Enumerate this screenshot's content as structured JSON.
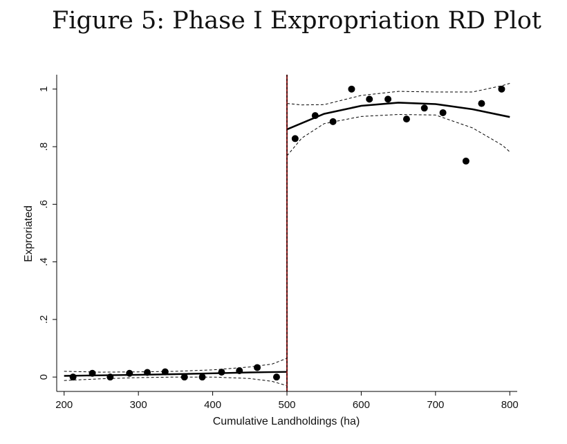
{
  "figure": {
    "title": "Figure 5: Phase I Expropriation RD Plot"
  },
  "chart_data": {
    "type": "scatter",
    "xlabel": "Cumulative Landholdings (ha)",
    "ylabel": "Exproriated",
    "xlim": [
      190,
      810
    ],
    "ylim": [
      -0.05,
      1.05
    ],
    "x_ticks": [
      200,
      300,
      400,
      500,
      600,
      700,
      800
    ],
    "x_tick_labels": [
      "200",
      "300",
      "400",
      "500",
      "600",
      "700",
      "800"
    ],
    "y_ticks": [
      0,
      0.2,
      0.4,
      0.6,
      0.8,
      1
    ],
    "y_tick_labels": [
      "0",
      ".2",
      ".4",
      ".6",
      ".8",
      "1"
    ],
    "cutoff": 500,
    "grid": false,
    "points": [
      {
        "x": 212,
        "y": 0.0
      },
      {
        "x": 238,
        "y": 0.013
      },
      {
        "x": 262,
        "y": 0.0
      },
      {
        "x": 288,
        "y": 0.013
      },
      {
        "x": 312,
        "y": 0.016
      },
      {
        "x": 336,
        "y": 0.018
      },
      {
        "x": 362,
        "y": 0.0
      },
      {
        "x": 386,
        "y": 0.0
      },
      {
        "x": 412,
        "y": 0.017
      },
      {
        "x": 436,
        "y": 0.022
      },
      {
        "x": 460,
        "y": 0.033
      },
      {
        "x": 486,
        "y": 0.0
      },
      {
        "x": 511,
        "y": 0.828
      },
      {
        "x": 538,
        "y": 0.908
      },
      {
        "x": 562,
        "y": 0.887
      },
      {
        "x": 587,
        "y": 1.0
      },
      {
        "x": 611,
        "y": 0.965
      },
      {
        "x": 636,
        "y": 0.965
      },
      {
        "x": 661,
        "y": 0.896
      },
      {
        "x": 685,
        "y": 0.934
      },
      {
        "x": 710,
        "y": 0.918
      },
      {
        "x": 741,
        "y": 0.75
      },
      {
        "x": 762,
        "y": 0.95
      },
      {
        "x": 789,
        "y": 1.0
      }
    ],
    "fit_left": {
      "x": [
        200,
        250,
        300,
        350,
        400,
        450,
        500
      ],
      "y": [
        0.004,
        0.006,
        0.008,
        0.01,
        0.013,
        0.016,
        0.018
      ]
    },
    "fit_right": {
      "x": [
        500,
        550,
        600,
        650,
        700,
        750,
        800
      ],
      "y": [
        0.86,
        0.914,
        0.942,
        0.953,
        0.948,
        0.93,
        0.903
      ]
    },
    "ci_left_upper": {
      "x": [
        200,
        250,
        300,
        350,
        400,
        450,
        480,
        500
      ],
      "y": [
        0.02,
        0.017,
        0.018,
        0.02,
        0.025,
        0.035,
        0.045,
        0.065
      ]
    },
    "ci_left_lower": {
      "x": [
        200,
        250,
        300,
        350,
        400,
        450,
        480,
        500
      ],
      "y": [
        -0.012,
        -0.006,
        -0.002,
        0.0,
        0.0,
        -0.005,
        -0.015,
        -0.03
      ]
    },
    "ci_right_upper": {
      "x": [
        500,
        520,
        550,
        600,
        650,
        700,
        750,
        790,
        800
      ],
      "y": [
        0.95,
        0.945,
        0.946,
        0.978,
        0.992,
        0.99,
        0.99,
        1.012,
        1.02
      ]
    },
    "ci_right_lower": {
      "x": [
        500,
        520,
        550,
        600,
        650,
        700,
        750,
        790,
        800
      ],
      "y": [
        0.768,
        0.83,
        0.88,
        0.905,
        0.912,
        0.91,
        0.865,
        0.805,
        0.782
      ]
    },
    "colors": {
      "points": "#000000",
      "fit": "#000000",
      "ci": "#000000",
      "cutoff_line": "#8b1a1a",
      "cutoff_dash": "#000000"
    }
  }
}
